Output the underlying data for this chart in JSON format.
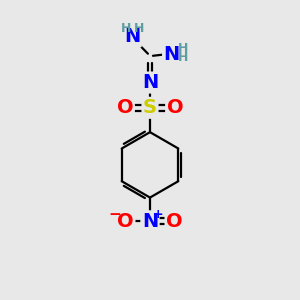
{
  "background_color": "#e8e8e8",
  "atom_colors": {
    "C": "#000000",
    "H": "#5f9ea0",
    "N": "#0000ff",
    "O": "#ff0000",
    "S": "#cccc00"
  },
  "bond_color": "#000000",
  "figsize": [
    3.0,
    3.0
  ],
  "dpi": 100
}
